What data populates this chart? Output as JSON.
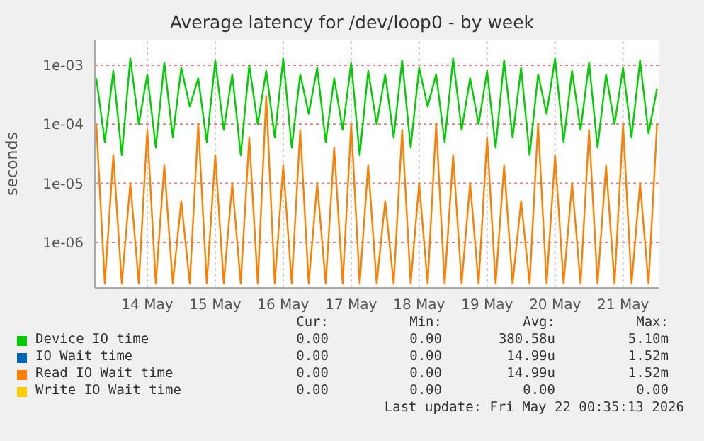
{
  "chart_data": {
    "type": "line",
    "title": "Average latency for /dev/loop0 - by week",
    "ylabel": "seconds",
    "log": "y",
    "grid": true,
    "legend": "bottom",
    "marker": "none",
    "line_style": "solid",
    "xlim": [
      "2026-05-13T17:30",
      "2026-05-22T00:35"
    ],
    "xticks": [
      {
        "value": "2026-05-14T12:00",
        "label": "14 May"
      },
      {
        "value": "2026-05-15T12:00",
        "label": "15 May"
      },
      {
        "value": "2026-05-16T12:00",
        "label": "16 May"
      },
      {
        "value": "2026-05-17T12:00",
        "label": "17 May"
      },
      {
        "value": "2026-05-18T12:00",
        "label": "18 May"
      },
      {
        "value": "2026-05-19T12:00",
        "label": "19 May"
      },
      {
        "value": "2026-05-20T12:00",
        "label": "20 May"
      },
      {
        "value": "2026-05-21T12:00",
        "label": "21 May"
      }
    ],
    "ylim": [
      1.7e-07,
      0.0027
    ],
    "yticks": [
      {
        "value": 1e-06,
        "label": "1e-06"
      },
      {
        "value": 1e-05,
        "label": "1e-05"
      },
      {
        "value": 0.0001,
        "label": "1e-04"
      },
      {
        "value": 0.001,
        "label": "1e-03"
      }
    ],
    "x": [
      "2026-05-13T18:00",
      "2026-05-13T21:00",
      "2026-05-14T00:00",
      "2026-05-14T03:00",
      "2026-05-14T06:00",
      "2026-05-14T09:00",
      "2026-05-14T12:00",
      "2026-05-14T15:00",
      "2026-05-14T18:00",
      "2026-05-14T21:00",
      "2026-05-15T00:00",
      "2026-05-15T03:00",
      "2026-05-15T06:00",
      "2026-05-15T09:00",
      "2026-05-15T12:00",
      "2026-05-15T15:00",
      "2026-05-15T18:00",
      "2026-05-15T21:00",
      "2026-05-16T00:00",
      "2026-05-16T03:00",
      "2026-05-16T06:00",
      "2026-05-16T09:00",
      "2026-05-16T12:00",
      "2026-05-16T15:00",
      "2026-05-16T18:00",
      "2026-05-16T21:00",
      "2026-05-17T00:00",
      "2026-05-17T03:00",
      "2026-05-17T06:00",
      "2026-05-17T09:00",
      "2026-05-17T12:00",
      "2026-05-17T15:00",
      "2026-05-17T18:00",
      "2026-05-17T21:00",
      "2026-05-18T00:00",
      "2026-05-18T03:00",
      "2026-05-18T06:00",
      "2026-05-18T09:00",
      "2026-05-18T12:00",
      "2026-05-18T15:00",
      "2026-05-18T18:00",
      "2026-05-18T21:00",
      "2026-05-19T00:00",
      "2026-05-19T03:00",
      "2026-05-19T06:00",
      "2026-05-19T09:00",
      "2026-05-19T12:00",
      "2026-05-19T15:00",
      "2026-05-19T18:00",
      "2026-05-19T21:00",
      "2026-05-20T00:00",
      "2026-05-20T03:00",
      "2026-05-20T06:00",
      "2026-05-20T09:00",
      "2026-05-20T12:00",
      "2026-05-20T15:00",
      "2026-05-20T18:00",
      "2026-05-20T21:00",
      "2026-05-21T00:00",
      "2026-05-21T03:00",
      "2026-05-21T06:00",
      "2026-05-21T09:00",
      "2026-05-21T12:00",
      "2026-05-21T15:00",
      "2026-05-21T18:00",
      "2026-05-21T21:00",
      "2026-05-22T00:00"
    ],
    "series": [
      {
        "name": "Device IO time",
        "color": "#00cc00",
        "values": [
          0.0006,
          5e-05,
          0.0008,
          3e-05,
          0.0013,
          0.0001,
          0.0007,
          4e-05,
          0.0011,
          6e-05,
          0.0009,
          0.0002,
          0.0006,
          5e-05,
          0.0012,
          8e-05,
          0.0007,
          3e-05,
          0.001,
          0.0001,
          0.0008,
          6e-05,
          0.0013,
          4e-05,
          0.0007,
          0.00015,
          0.0009,
          5e-05,
          0.0006,
          8e-05,
          0.0011,
          3e-05,
          0.0008,
          0.0001,
          0.0007,
          6e-05,
          0.0012,
          4e-05,
          0.0009,
          0.0002,
          0.0007,
          5e-05,
          0.0013,
          8e-05,
          0.0006,
          0.0001,
          0.0008,
          4e-05,
          0.0012,
          6e-05,
          0.0009,
          3e-05,
          0.0007,
          0.00015,
          0.0013,
          5e-05,
          0.0008,
          8e-05,
          0.0011,
          4e-05,
          0.0007,
          0.0001,
          0.0009,
          6e-05,
          0.0012,
          7e-05,
          0.0004
        ]
      },
      {
        "name": "IO Wait time",
        "color": "#0066b3",
        "values": [
          null,
          null,
          null,
          null,
          null,
          null,
          null,
          null,
          null,
          null,
          null,
          null,
          null,
          null,
          null,
          null,
          null,
          null,
          null,
          null,
          null,
          null,
          null,
          null,
          null,
          null,
          null,
          null,
          null,
          null,
          null,
          null,
          null,
          null,
          null,
          null,
          null,
          null,
          null,
          null,
          null,
          null,
          null,
          null,
          null,
          null,
          null,
          null,
          null,
          null,
          null,
          null,
          null,
          null,
          null,
          null,
          null,
          null,
          null,
          null,
          null,
          null,
          null,
          null,
          null,
          null,
          null
        ]
      },
      {
        "name": "Read IO Wait time",
        "color": "#ff8000",
        "values": [
          0.0001,
          2e-07,
          3e-05,
          2e-07,
          1e-05,
          2e-07,
          8e-05,
          2e-07,
          2e-05,
          2e-07,
          5e-06,
          2e-07,
          0.0001,
          2e-07,
          3e-05,
          2e-07,
          1e-05,
          2e-07,
          6e-05,
          2e-07,
          0.0003,
          2e-07,
          2e-05,
          2e-07,
          8e-05,
          2e-07,
          1e-05,
          2e-07,
          4e-05,
          2e-07,
          0.0001,
          2e-07,
          2e-05,
          2e-07,
          5e-06,
          2e-07,
          8e-05,
          2e-07,
          1e-05,
          2e-07,
          0.0001,
          2e-07,
          3e-05,
          2e-07,
          1e-05,
          2e-07,
          6e-05,
          2e-07,
          2e-05,
          2e-07,
          5e-06,
          2e-07,
          0.0001,
          2e-07,
          3e-05,
          2e-07,
          1e-05,
          2e-07,
          8e-05,
          2e-07,
          2e-05,
          2e-07,
          0.0001,
          2e-07,
          1e-05,
          2e-07,
          0.0001
        ]
      },
      {
        "name": "Write IO Wait time",
        "color": "#ffcc00",
        "values": [
          null,
          null,
          null,
          null,
          null,
          null,
          null,
          null,
          null,
          null,
          null,
          null,
          null,
          null,
          null,
          null,
          null,
          null,
          null,
          null,
          null,
          null,
          null,
          null,
          null,
          null,
          null,
          null,
          null,
          null,
          null,
          null,
          null,
          null,
          null,
          null,
          null,
          null,
          null,
          null,
          null,
          null,
          null,
          null,
          null,
          null,
          null,
          null,
          null,
          null,
          null,
          null,
          null,
          null,
          null,
          null,
          null,
          null,
          null,
          null,
          null,
          null,
          null,
          null,
          null,
          null,
          null
        ]
      }
    ],
    "annotations": [
      "Cur:",
      "Min:",
      "Avg:",
      "Max:",
      "0.00",
      "0.00",
      "380.58u",
      "5.10m",
      "0.00",
      "0.00",
      "14.99u",
      "1.52m",
      "0.00",
      "0.00",
      "14.99u",
      "1.52m",
      "0.00",
      "0.00",
      "0.00",
      "0.00",
      "Last update: Fri May 22 00:35:13 2026"
    ]
  }
}
